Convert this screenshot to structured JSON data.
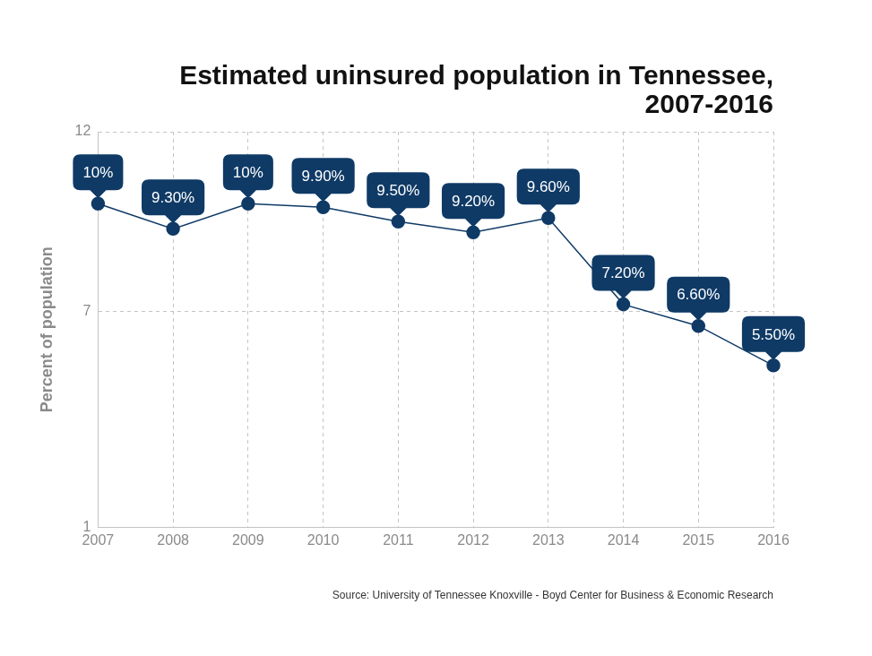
{
  "chart_data": {
    "type": "line",
    "title": [
      "Estimated uninsured population in Tennessee,",
      "2007-2016"
    ],
    "y_label": "Percent of population",
    "source": "Source: University of Tennessee Knoxville - Boyd Center for Business & Economic Research",
    "categories": [
      "2007",
      "2008",
      "2009",
      "2010",
      "2011",
      "2012",
      "2013",
      "2014",
      "2015",
      "2016"
    ],
    "values": [
      10,
      9.3,
      10,
      9.9,
      9.5,
      9.2,
      9.6,
      7.2,
      6.6,
      5.5
    ],
    "value_labels": [
      "10%",
      "9.30%",
      "10%",
      "9.90%",
      "9.50%",
      "9.20%",
      "9.60%",
      "7.20%",
      "6.60%",
      "5.50%"
    ],
    "data_labels": true,
    "color": "#0f3a66",
    "marker": "circle",
    "ylim": [
      1,
      12
    ],
    "yticks": [
      1,
      7,
      12
    ],
    "grid": true
  }
}
